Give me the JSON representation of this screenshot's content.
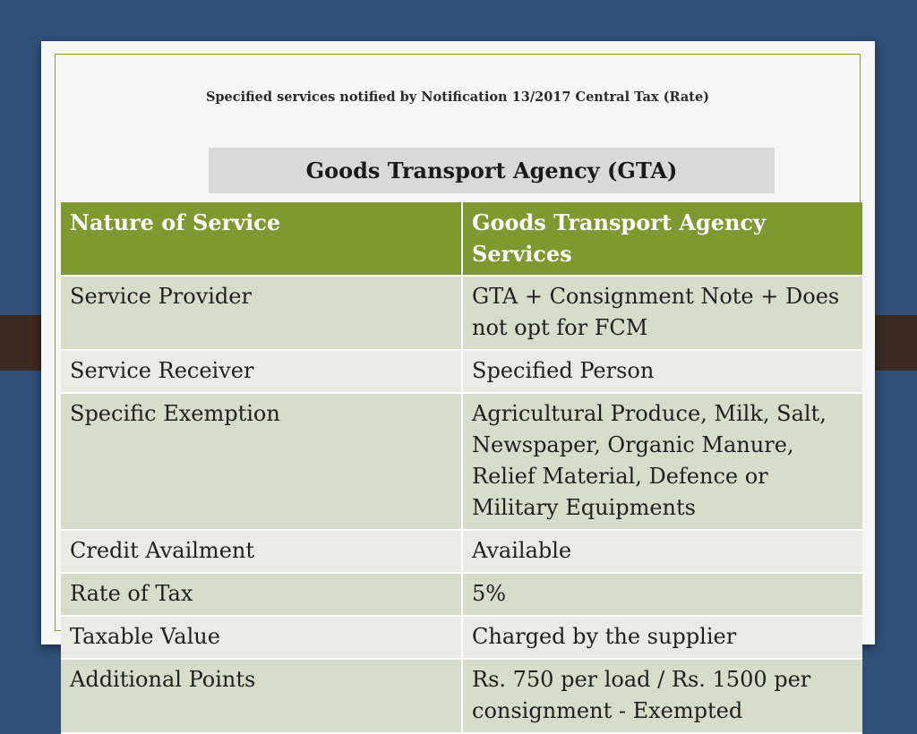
{
  "slide": {
    "notice": "Specified services notified by Notification 13/2017 Central Tax (Rate)",
    "heading": "Goods Transport Agency (GTA)"
  },
  "table": {
    "header": [
      "Nature of Service",
      "Goods Transport Agency Services"
    ],
    "rows": [
      [
        "Service Provider",
        "GTA + Consignment Note + Does not opt for FCM"
      ],
      [
        "Service Receiver",
        "Specified Person"
      ],
      [
        "Specific Exemption",
        "Agricultural Produce, Milk, Salt, Newspaper, Organic Manure, Relief Material, Defence or Military Equipments"
      ],
      [
        "Credit Availment",
        "Available"
      ],
      [
        "Rate of Tax",
        "5%"
      ],
      [
        "Taxable Value",
        "Charged by the supplier"
      ],
      [
        "Additional Points",
        "Rs. 750 per load / Rs. 1500 per consignment - Exempted"
      ]
    ]
  },
  "colors": {
    "background": "#2f5079",
    "header_green": "#7e992f",
    "row_dark": "#d7dccb",
    "row_light": "#eaece4",
    "band": "#3b2a21"
  }
}
